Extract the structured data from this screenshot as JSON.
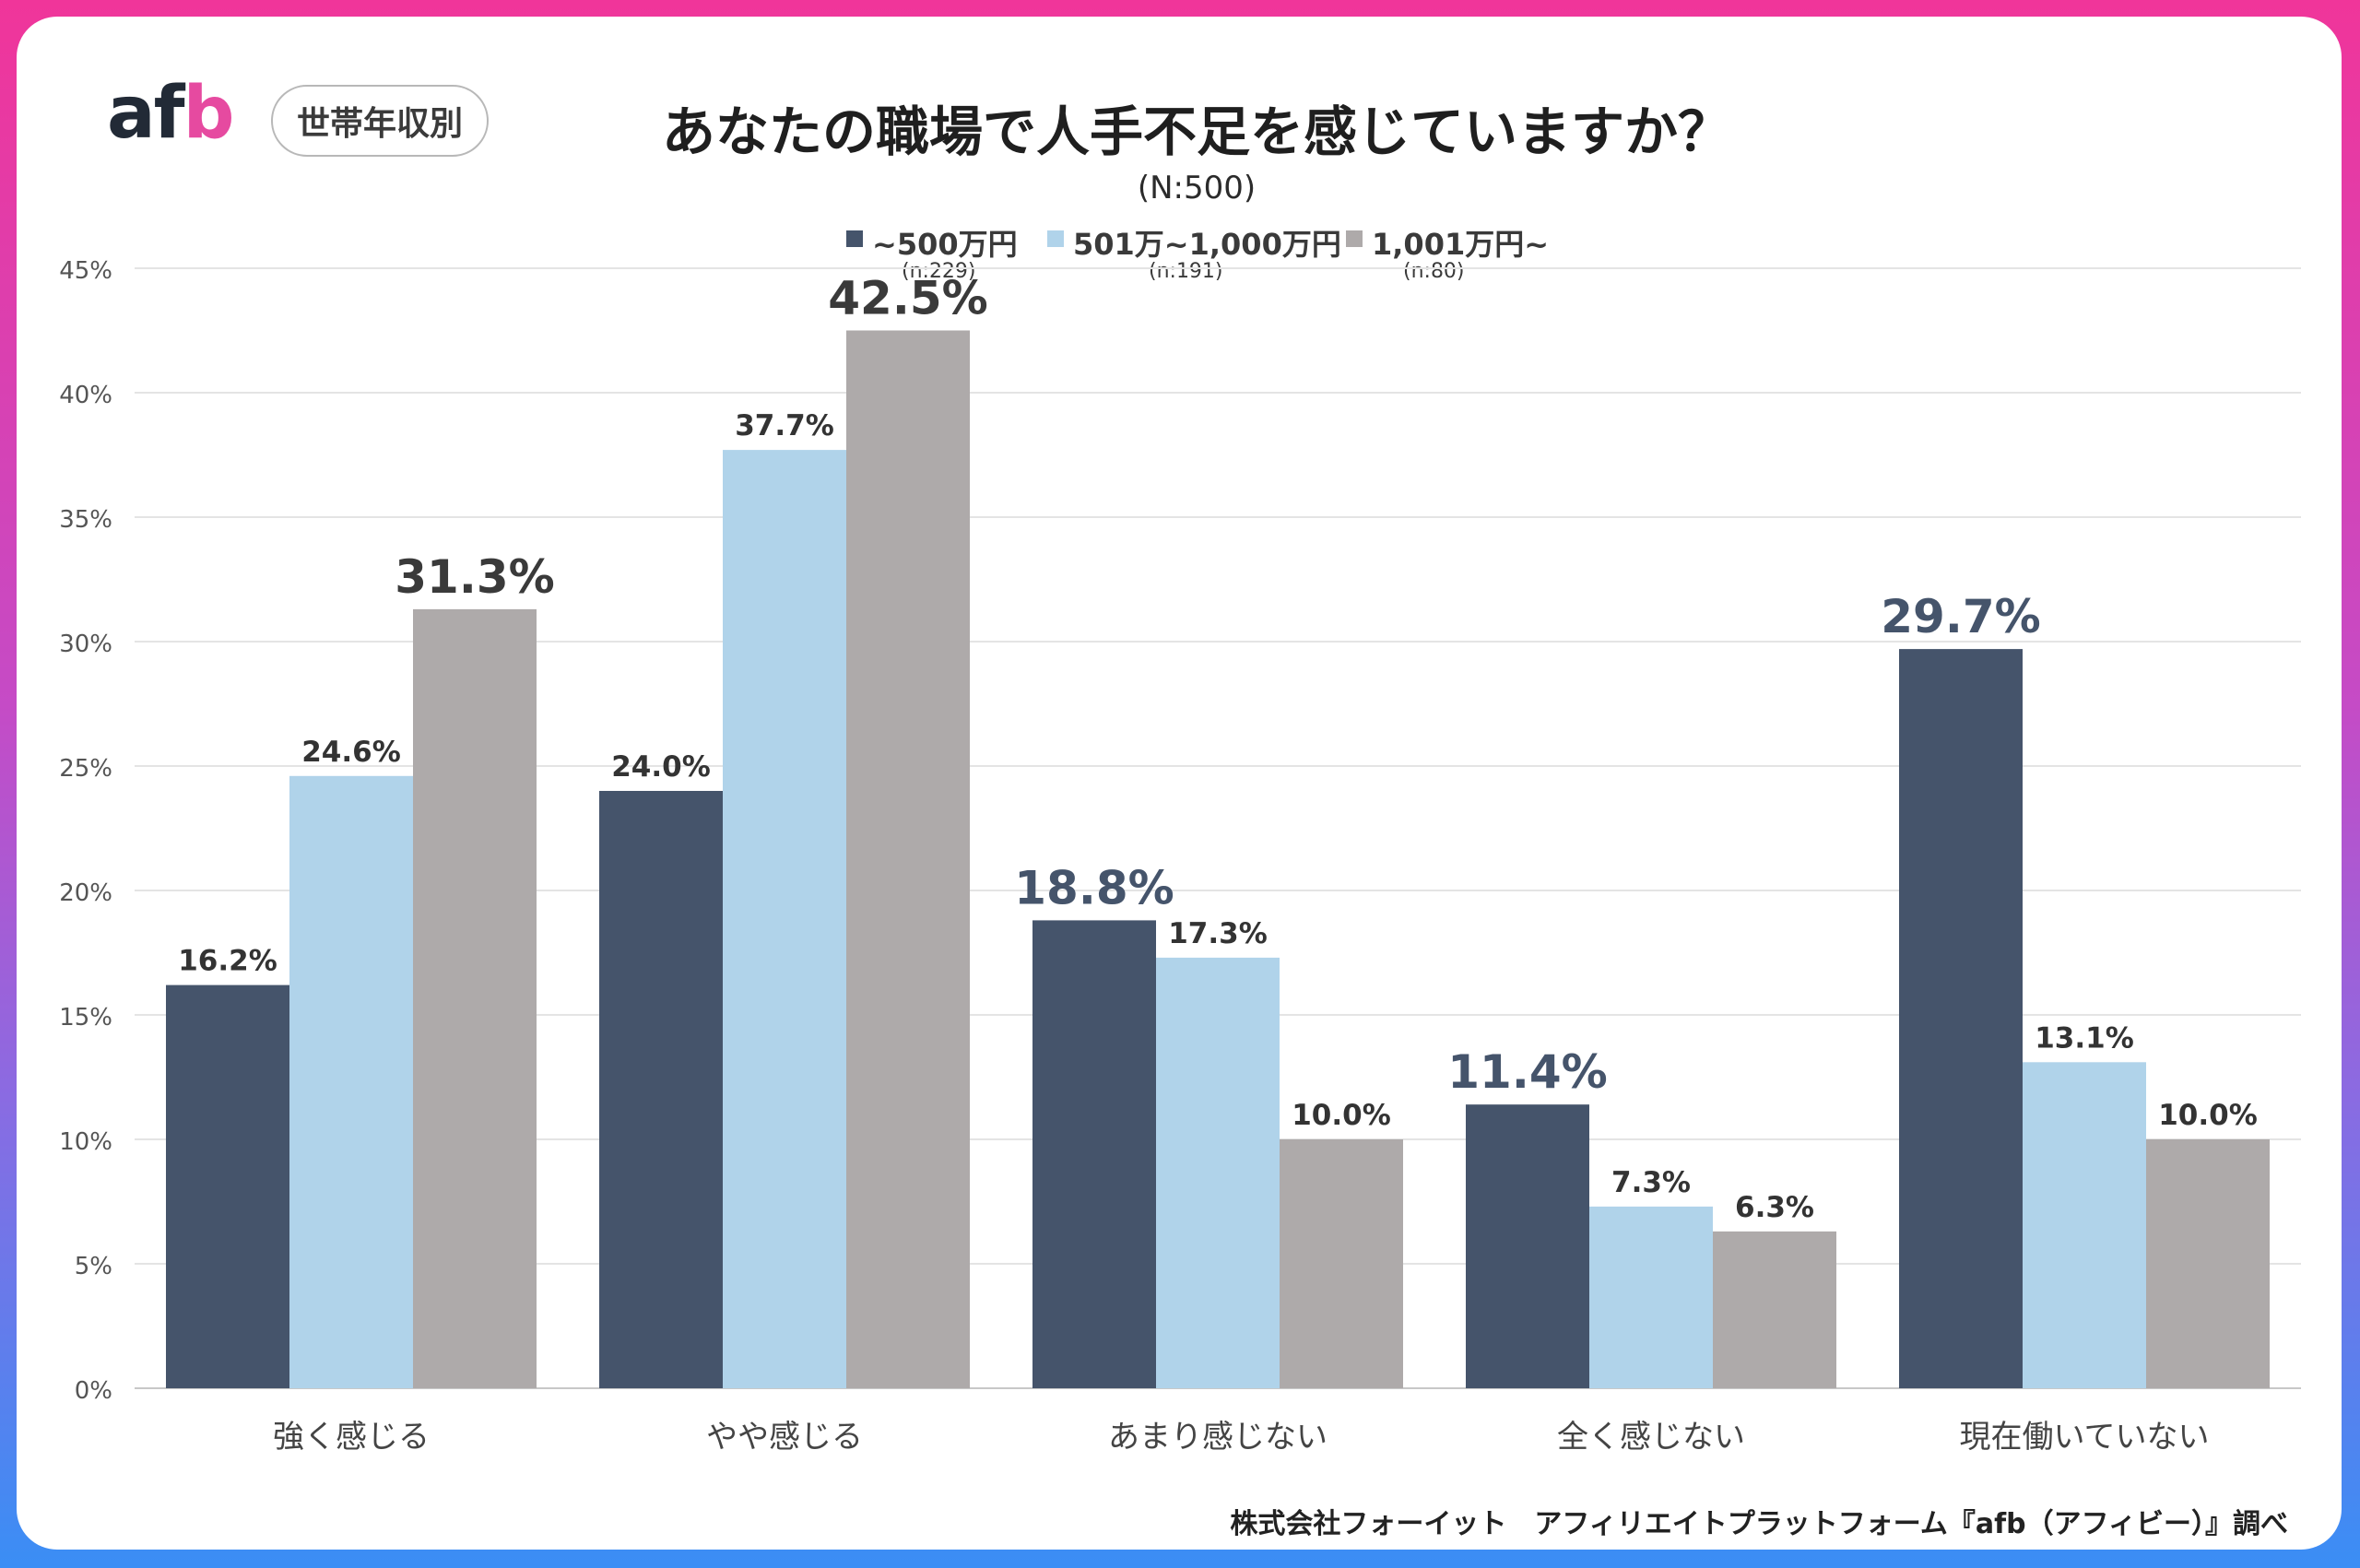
{
  "logo": {
    "text_a": "af",
    "text_b": "b"
  },
  "badge": "世帯年収別",
  "chart_data": {
    "type": "bar",
    "title": "あなたの職場で人手不足を感じていますか？",
    "subtitle": "(N:500)",
    "categories": [
      "強く感じる",
      "やや感じる",
      "あまり感じない",
      "全く感じない",
      "現在働いていない"
    ],
    "series": [
      {
        "name": "~500万円",
        "n": "(n:229)",
        "color": "#45546b",
        "values": [
          16.2,
          24.0,
          18.8,
          11.4,
          29.7
        ]
      },
      {
        "name": "501万~1,000万円",
        "n": "(n:191)",
        "color": "#b0d3ea",
        "values": [
          24.6,
          37.7,
          17.3,
          7.3,
          13.1
        ]
      },
      {
        "name": "1,001万円~",
        "n": "(n:80)",
        "color": "#aeaaaa",
        "values": [
          31.3,
          42.5,
          10.0,
          6.3,
          10.0
        ]
      }
    ],
    "data_labels": [
      [
        "16.2%",
        "24.0%",
        "18.8%",
        "11.4%",
        "29.7%"
      ],
      [
        "24.6%",
        "37.7%",
        "17.3%",
        "7.3%",
        "13.1%"
      ],
      [
        "31.3%",
        "42.5%",
        "10.0%",
        "6.3%",
        "10.0%"
      ]
    ],
    "highlight_color": "#45546b",
    "y_ticks": [
      "0%",
      "5%",
      "10%",
      "15%",
      "20%",
      "25%",
      "30%",
      "35%",
      "40%",
      "45%"
    ],
    "ylim": [
      0,
      45
    ],
    "grid": true,
    "legend_position": "top-center"
  },
  "footer": "株式会社フォーイット　アフィリエイトプラットフォーム『afb（アフィビー）』調べ"
}
